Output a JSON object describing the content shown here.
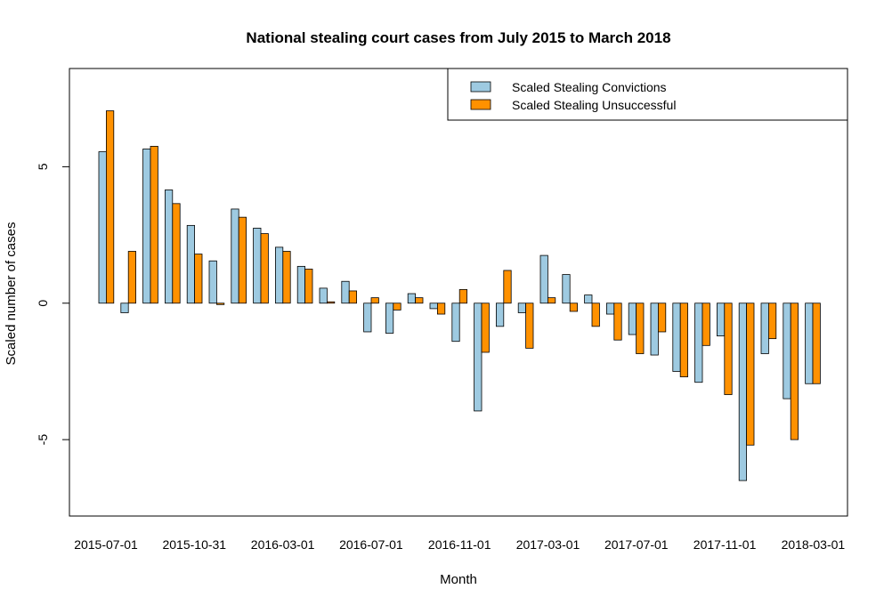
{
  "chart_data": {
    "type": "bar",
    "title": "National stealing court cases from July 2015 to March 2018",
    "xlabel": "Month",
    "ylabel": "Scaled number of cases",
    "ylim": [
      -7.8,
      8.6
    ],
    "yticks": [
      -5,
      0,
      5
    ],
    "xtick_labels": [
      "2015-07-01",
      "2015-10-31",
      "2016-03-01",
      "2016-07-01",
      "2016-11-01",
      "2017-03-01",
      "2017-07-01",
      "2017-11-01",
      "2018-03-01"
    ],
    "legend_position": "top-right",
    "colors": {
      "convictions": "#9ecae1",
      "unsuccessful": "#ff9100",
      "stroke": "#000000"
    },
    "categories": [
      "2015-07",
      "2015-08",
      "2015-09",
      "2015-10",
      "2015-11",
      "2015-12",
      "2016-01",
      "2016-02",
      "2016-03",
      "2016-04",
      "2016-05",
      "2016-06",
      "2016-07",
      "2016-08",
      "2016-09",
      "2016-10",
      "2016-11",
      "2016-12",
      "2017-01",
      "2017-02",
      "2017-03",
      "2017-04",
      "2017-05",
      "2017-06",
      "2017-07",
      "2017-08",
      "2017-09",
      "2017-10",
      "2017-11",
      "2017-12",
      "2018-01",
      "2018-02",
      "2018-03"
    ],
    "series": [
      {
        "name": "Scaled Stealing Convictions",
        "values": [
          5.55,
          -0.35,
          5.65,
          4.15,
          2.85,
          1.55,
          3.45,
          2.75,
          2.05,
          1.35,
          0.55,
          0.8,
          -1.05,
          -1.1,
          0.35,
          -0.2,
          -1.4,
          -3.95,
          -0.85,
          -0.35,
          1.75,
          1.05,
          0.3,
          -0.4,
          -1.15,
          -1.9,
          -2.5,
          -2.9,
          -1.2,
          -6.5,
          -1.85,
          -3.5,
          -2.95
        ]
      },
      {
        "name": "Scaled Stealing Unsuccessful",
        "values": [
          7.05,
          1.9,
          5.75,
          3.65,
          1.8,
          -0.05,
          3.15,
          2.55,
          1.9,
          1.25,
          0.05,
          0.45,
          0.2,
          -0.25,
          0.2,
          -0.4,
          0.5,
          -1.8,
          1.2,
          -1.65,
          0.2,
          -0.3,
          -0.85,
          -1.35,
          -1.85,
          -1.05,
          -2.7,
          -1.55,
          -3.35,
          -5.2,
          -1.3,
          -5.0,
          -2.95
        ]
      }
    ]
  }
}
